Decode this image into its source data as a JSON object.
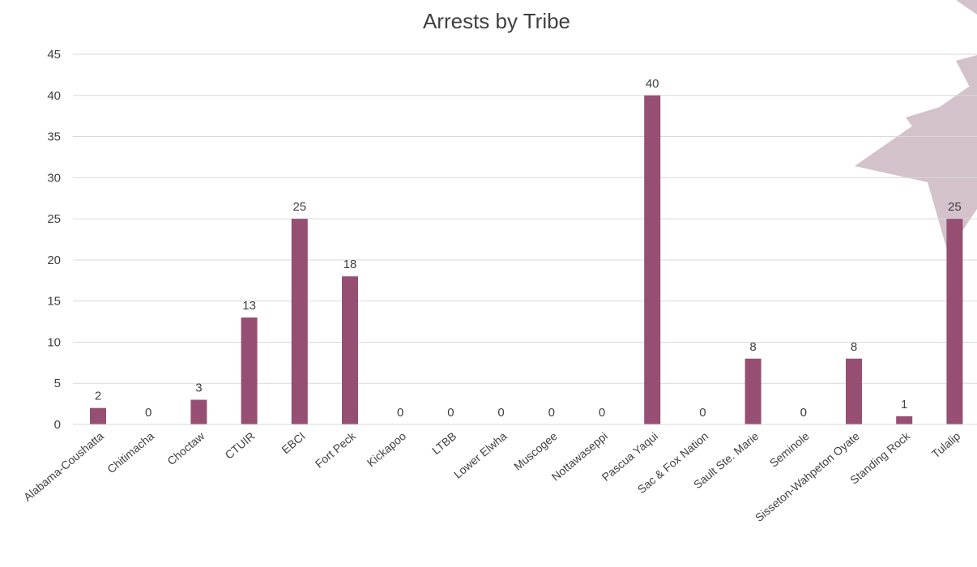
{
  "chart_data": {
    "type": "bar",
    "title": "Arrests by Tribe",
    "xlabel": "",
    "ylabel": "",
    "ylim": [
      0,
      45
    ],
    "yticks": [
      0,
      5,
      10,
      15,
      20,
      25,
      30,
      35,
      40,
      45
    ],
    "grid": true,
    "legend": "none",
    "categories": [
      "Alabama-Coushatta",
      "Chitimacha",
      "Choctaw",
      "CTUIR",
      "EBCI",
      "Fort Peck",
      "Kickapoo",
      "LTBB",
      "Lower Elwha",
      "Muscogee",
      "Nottawaseppi",
      "Pascua Yaqui",
      "Sac & Fox Nation",
      "Sault Ste. Marie",
      "Seminole",
      "Sisseton-Wahpeton Oyate",
      "Standing Rock",
      "Tulalip"
    ],
    "values": [
      2,
      0,
      3,
      13,
      25,
      18,
      0,
      0,
      0,
      0,
      0,
      40,
      0,
      8,
      0,
      8,
      1,
      25
    ],
    "bar_color": "#964f72",
    "decoration_color": "#d3c2cb"
  }
}
